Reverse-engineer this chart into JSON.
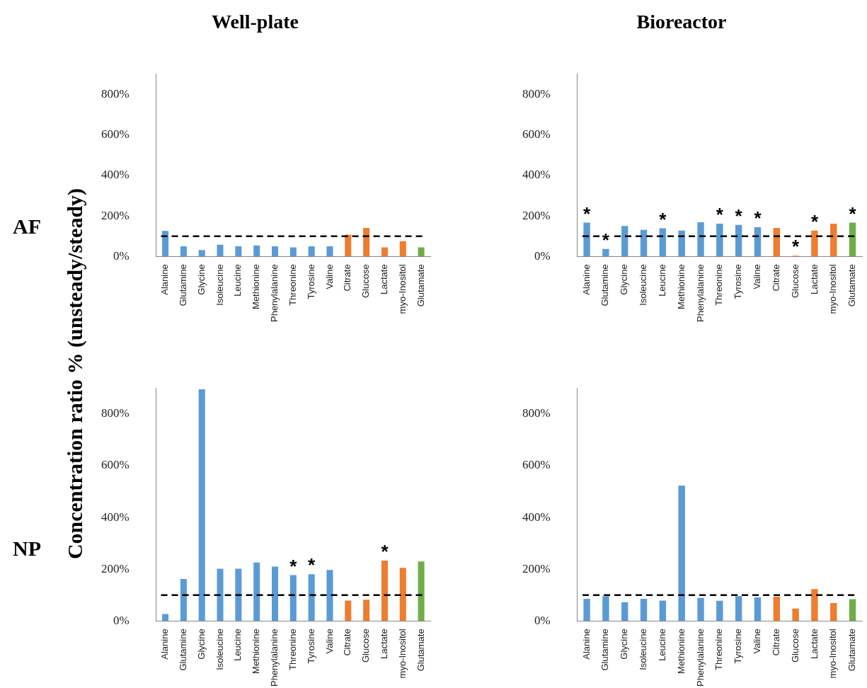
{
  "chart_data": [
    {
      "type": "bar",
      "title": "Well-plate",
      "ylabel": "Concentration ratio % (unsteady/steady)",
      "categories": [
        "Alanine",
        "Glutamine",
        "Glycine",
        "Isoleucine",
        "Leucine",
        "Methionine",
        "Phenylalanine",
        "Threonine",
        "Tyrosine",
        "Valine",
        "Citrate",
        "Glucose",
        "Lactate",
        "myo-Inositol",
        "Glutamate"
      ],
      "values": [
        126,
        50,
        32,
        58,
        50,
        54,
        50,
        45,
        50,
        50,
        108,
        141,
        45,
        75,
        45
      ],
      "colors": [
        "#5b9bd5",
        "#5b9bd5",
        "#5b9bd5",
        "#5b9bd5",
        "#5b9bd5",
        "#5b9bd5",
        "#5b9bd5",
        "#5b9bd5",
        "#5b9bd5",
        "#5b9bd5",
        "#ed7d31",
        "#ed7d31",
        "#ed7d31",
        "#ed7d31",
        "#70ad47"
      ],
      "ylim": [
        0,
        900
      ],
      "yticks": [
        {
          "value": 0,
          "label": "0%"
        },
        {
          "value": 200,
          "label": "200%"
        },
        {
          "value": 400,
          "label": "400%"
        },
        {
          "value": 600,
          "label": "600%"
        },
        {
          "value": 800,
          "label": "800%"
        }
      ],
      "ref_lines": [
        {
          "axis": "y",
          "value": 100,
          "color": "#000000",
          "line_style": "dashed"
        }
      ],
      "annotations": [
        "AF"
      ]
    },
    {
      "type": "bar",
      "title": "Bioreactor",
      "categories": [
        "Alanine",
        "Glutamine",
        "Glycine",
        "Isoleucine",
        "Leucine",
        "Methionine",
        "Phenylalanine",
        "Threonine",
        "Tyrosine",
        "Valine",
        "Citrate",
        "Glucose",
        "Lactate",
        "myo-Inositol",
        "Glutamate"
      ],
      "values": [
        167,
        37,
        150,
        131,
        139,
        128,
        169,
        162,
        156,
        144,
        141,
        4,
        128,
        162,
        167
      ],
      "colors": [
        "#5b9bd5",
        "#5b9bd5",
        "#5b9bd5",
        "#5b9bd5",
        "#5b9bd5",
        "#5b9bd5",
        "#5b9bd5",
        "#5b9bd5",
        "#5b9bd5",
        "#5b9bd5",
        "#ed7d31",
        "#ed7d31",
        "#ed7d31",
        "#ed7d31",
        "#70ad47"
      ],
      "ylim": [
        0,
        900
      ],
      "yticks": [
        {
          "value": 0,
          "label": "0%"
        },
        {
          "value": 200,
          "label": "200%"
        },
        {
          "value": 400,
          "label": "400%"
        },
        {
          "value": 600,
          "label": "600%"
        },
        {
          "value": 800,
          "label": "800%"
        }
      ],
      "ref_lines": [
        {
          "axis": "y",
          "value": 100,
          "color": "#000000",
          "line_style": "dashed"
        }
      ],
      "annotations": [
        {
          "text": "*",
          "x": "Alanine",
          "y": 167
        },
        {
          "text": "*",
          "x": "Glutamine",
          "y": 37
        },
        {
          "text": "*",
          "x": "Leucine",
          "y": 139
        },
        {
          "text": "*",
          "x": "Threonine",
          "y": 162
        },
        {
          "text": "*",
          "x": "Tyrosine",
          "y": 156
        },
        {
          "text": "*",
          "x": "Valine",
          "y": 144
        },
        {
          "text": "*",
          "x": "Glucose",
          "y": 4
        },
        {
          "text": "*",
          "x": "Lactate",
          "y": 128
        },
        {
          "text": "*",
          "x": "Glutamate",
          "y": 167
        }
      ]
    },
    {
      "type": "bar",
      "categories": [
        "Alanine",
        "Glutamine",
        "Glycine",
        "Isoleucine",
        "Leucine",
        "Methionine",
        "Phenylalanine",
        "Threonine",
        "Tyrosine",
        "Valine",
        "Citrate",
        "Glucose",
        "Lactate",
        "myo-Inositol",
        "Glutamate"
      ],
      "values": [
        27,
        162,
        895,
        202,
        202,
        226,
        210,
        177,
        181,
        197,
        79,
        82,
        233,
        205,
        230
      ],
      "colors": [
        "#5b9bd5",
        "#5b9bd5",
        "#5b9bd5",
        "#5b9bd5",
        "#5b9bd5",
        "#5b9bd5",
        "#5b9bd5",
        "#5b9bd5",
        "#5b9bd5",
        "#5b9bd5",
        "#ed7d31",
        "#ed7d31",
        "#ed7d31",
        "#ed7d31",
        "#70ad47"
      ],
      "ylim": [
        0,
        900
      ],
      "yticks": [
        {
          "value": 0,
          "label": "0%"
        },
        {
          "value": 200,
          "label": "200%"
        },
        {
          "value": 400,
          "label": "400%"
        },
        {
          "value": 600,
          "label": "600%"
        },
        {
          "value": 800,
          "label": "800%"
        }
      ],
      "ref_lines": [
        {
          "axis": "y",
          "value": 100,
          "color": "#000000",
          "line_style": "dashed"
        }
      ],
      "annotations": [
        "NP",
        {
          "text": "*",
          "x": "Threonine",
          "y": 177
        },
        {
          "text": "*",
          "x": "Tyrosine",
          "y": 181
        },
        {
          "text": "*",
          "x": "Lactate",
          "y": 233
        }
      ]
    },
    {
      "type": "bar",
      "categories": [
        "Alanine",
        "Glutamine",
        "Glycine",
        "Isoleucine",
        "Leucine",
        "Methionine",
        "Phenylalanine",
        "Threonine",
        "Tyrosine",
        "Valine",
        "Citrate",
        "Glucose",
        "Lactate",
        "myo-Inositol",
        "Glutamate"
      ],
      "values": [
        86,
        96,
        73,
        86,
        79,
        523,
        89,
        78,
        96,
        91,
        94,
        48,
        123,
        69,
        84
      ],
      "colors": [
        "#5b9bd5",
        "#5b9bd5",
        "#5b9bd5",
        "#5b9bd5",
        "#5b9bd5",
        "#5b9bd5",
        "#5b9bd5",
        "#5b9bd5",
        "#5b9bd5",
        "#5b9bd5",
        "#ed7d31",
        "#ed7d31",
        "#ed7d31",
        "#ed7d31",
        "#70ad47"
      ],
      "ylim": [
        0,
        900
      ],
      "yticks": [
        {
          "value": 0,
          "label": "0%"
        },
        {
          "value": 200,
          "label": "200%"
        },
        {
          "value": 400,
          "label": "400%"
        },
        {
          "value": 600,
          "label": "600%"
        },
        {
          "value": 800,
          "label": "800%"
        }
      ],
      "ref_lines": [
        {
          "axis": "y",
          "value": 100,
          "color": "#000000",
          "line_style": "dashed"
        }
      ]
    }
  ]
}
